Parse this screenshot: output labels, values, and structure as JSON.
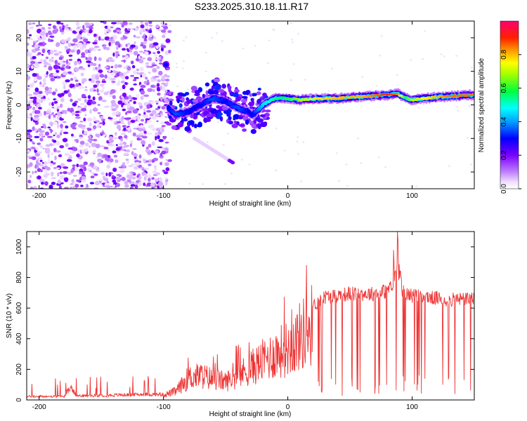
{
  "title": "S233.2025.310.18.11.R17",
  "colors": {
    "background": "#ffffff",
    "snr_line": "#ee3333",
    "axis": "#000000"
  },
  "chart_data": [
    {
      "type": "heatmap",
      "name": "spectrogram",
      "xlabel": "Height of straight line (km)",
      "ylabel": "Frequency (Hz)",
      "xlim": [
        -210,
        150
      ],
      "ylim": [
        -25,
        25
      ],
      "xticks": [
        -200,
        -100,
        0,
        100
      ],
      "yticks": [
        20,
        10,
        0,
        -10,
        -20
      ],
      "colorbar": {
        "label": "Normalized spectral amplitude",
        "range": [
          0.0,
          1.0
        ],
        "ticks": [
          "0.0",
          "0.2",
          "0.4",
          "0.6",
          "0.8"
        ],
        "tick_values": [
          0.0,
          0.2,
          0.4,
          0.6,
          0.8
        ]
      },
      "noise_region": {
        "x_range": [
          -210,
          -95
        ],
        "y_range": [
          -25,
          25
        ]
      },
      "features": [
        {
          "name": "isolated-blob",
          "x": -98,
          "y": 12,
          "amplitude": 0.3
        },
        {
          "name": "diagonal-streak",
          "x_start": -75,
          "y_start": -10,
          "x_end": -43,
          "y_end": -17.5,
          "amplitude": 0.05
        }
      ],
      "ridge": {
        "description": "main spectral ridge",
        "x": [
          -96,
          -90,
          -80,
          -70,
          -60,
          -50,
          -40,
          -32,
          -28,
          -20,
          -10,
          0,
          10,
          20,
          40,
          60,
          80,
          88,
          95,
          100,
          110,
          120,
          130,
          140,
          150
        ],
        "y": [
          -1,
          -3,
          -2,
          0,
          2,
          1,
          -1,
          -2,
          -3,
          0,
          2,
          2,
          1.5,
          1.8,
          2.0,
          2.5,
          3.0,
          3.5,
          2.0,
          1.5,
          2.0,
          2.3,
          2.6,
          2.8,
          3.0
        ],
        "amplitude": [
          0.3,
          0.35,
          0.3,
          0.3,
          0.35,
          0.3,
          0.35,
          0.3,
          0.3,
          0.45,
          0.55,
          0.6,
          0.7,
          0.75,
          0.8,
          0.8,
          0.9,
          0.85,
          0.6,
          0.7,
          0.75,
          0.8,
          0.85,
          0.85,
          0.85
        ]
      }
    },
    {
      "type": "line",
      "name": "snr",
      "xlabel": "Height of straight line (km)",
      "ylabel": "SNR (10 * v/v)",
      "xlim": [
        -210,
        150
      ],
      "ylim": [
        0,
        1100
      ],
      "xticks": [
        -200,
        -100,
        0,
        100
      ],
      "yticks": [
        0,
        200,
        400,
        600,
        800,
        1000
      ],
      "envelope": {
        "x": [
          -210,
          -180,
          -175,
          -170,
          -160,
          -120,
          -100,
          -90,
          -80,
          -70,
          -60,
          -50,
          -40,
          -30,
          -20,
          -10,
          0,
          10,
          20,
          30,
          40,
          50,
          60,
          70,
          80,
          85,
          88,
          90,
          95,
          100,
          110,
          120,
          130,
          140,
          150
        ],
        "y": [
          25,
          25,
          90,
          30,
          30,
          40,
          40,
          70,
          180,
          200,
          170,
          150,
          200,
          260,
          320,
          380,
          420,
          520,
          620,
          680,
          690,
          700,
          700,
          700,
          720,
          760,
          900,
          740,
          700,
          690,
          680,
          670,
          660,
          665,
          670
        ]
      },
      "dropouts": {
        "start_km": 20,
        "end_km": 150,
        "min_value": 20
      }
    }
  ]
}
